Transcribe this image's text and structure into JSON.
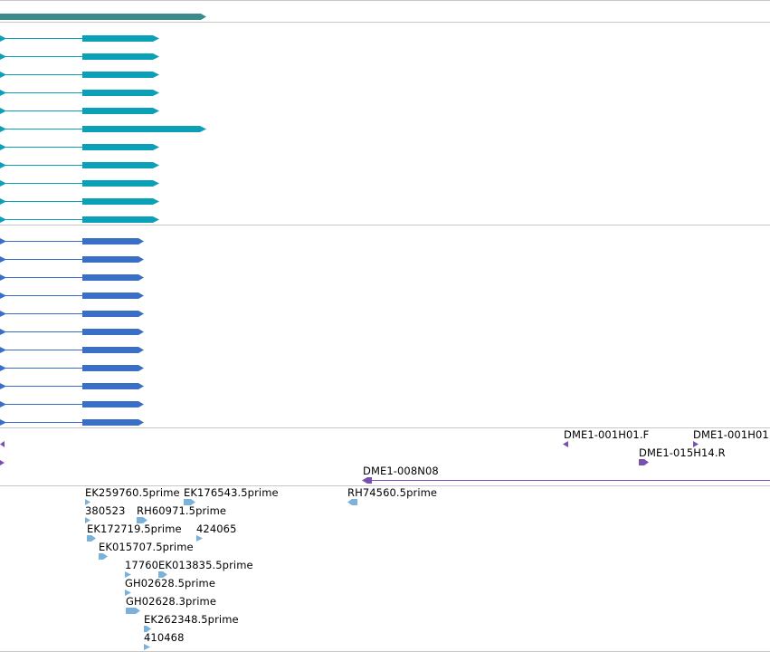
{
  "colors": {
    "gene": "#3a8c8c",
    "transcript_teal": "#0aa0b8",
    "transcript_blue": "#3a6fc8",
    "clone_end": "#7a4fb0",
    "est": "#7ab2dc",
    "divider": "#c8c8c8"
  },
  "clone_labels": {
    "f1": "DME1-001H01.F",
    "f2": "DME1-001H01",
    "r1": "DME1-015H14.R",
    "n1": "DME1-008N08"
  },
  "est_labels": {
    "l1": "EK259760.5prime",
    "l2": "EK176543.5prime",
    "l3": "RH74560.5prime",
    "l4": "380523",
    "l5": "RH60971.5prime",
    "l6": "EK172719.5prime",
    "l7": "424065",
    "l8": "EK015707.5prime",
    "l9": "17760",
    "l10": "EK013835.5prime",
    "l11": "GH02628.5prime",
    "l12": "GH02628.3prime",
    "l13": "EK262348.5prime",
    "l14": "410468"
  }
}
